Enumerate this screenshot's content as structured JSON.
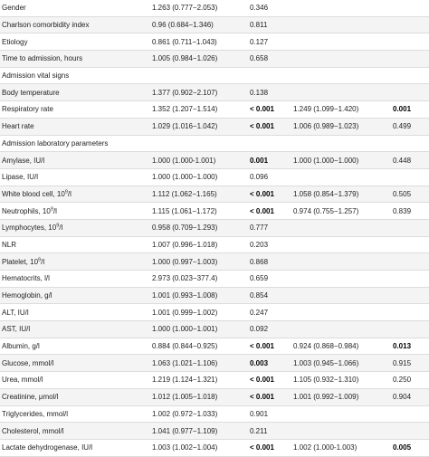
{
  "rows": [
    {
      "label": "Gender",
      "uni_or": "1.263 (0.777−2.053)",
      "uni_p": "0.346",
      "uni_p_bold": false,
      "multi_or": "",
      "multi_p": "",
      "multi_p_bold": false,
      "section": false
    },
    {
      "label": "Charlson comorbidity index",
      "uni_or": "0.96 (0.684−1.346)",
      "uni_p": "0.811",
      "uni_p_bold": false,
      "multi_or": "",
      "multi_p": "",
      "multi_p_bold": false,
      "section": false
    },
    {
      "label": "Etiology",
      "uni_or": "0.861 (0.711−1.043)",
      "uni_p": "0.127",
      "uni_p_bold": false,
      "multi_or": "",
      "multi_p": "",
      "multi_p_bold": false,
      "section": false
    },
    {
      "label": "Time to admission, hours",
      "uni_or": "1.005 (0.984−1.026)",
      "uni_p": "0.658",
      "uni_p_bold": false,
      "multi_or": "",
      "multi_p": "",
      "multi_p_bold": false,
      "section": false
    },
    {
      "label": "Admission vital signs",
      "uni_or": "",
      "uni_p": "",
      "uni_p_bold": false,
      "multi_or": "",
      "multi_p": "",
      "multi_p_bold": false,
      "section": true
    },
    {
      "label": "Body temperature",
      "uni_or": "1.377 (0.902−2.107)",
      "uni_p": "0.138",
      "uni_p_bold": false,
      "multi_or": "",
      "multi_p": "",
      "multi_p_bold": false,
      "section": false
    },
    {
      "label": "Respiratory rate",
      "uni_or": "1.352 (1.207−1.514)",
      "uni_p": "< 0.001",
      "uni_p_bold": true,
      "multi_or": "1.249 (1.099−1.420)",
      "multi_p": "0.001",
      "multi_p_bold": true,
      "section": false
    },
    {
      "label": "Heart rate",
      "uni_or": "1.029 (1.016−1.042)",
      "uni_p": "< 0.001",
      "uni_p_bold": true,
      "multi_or": "1.006 (0.989−1.023)",
      "multi_p": "0.499",
      "multi_p_bold": false,
      "section": false
    },
    {
      "label": "Admission laboratory parameters",
      "uni_or": "",
      "uni_p": "",
      "uni_p_bold": false,
      "multi_or": "",
      "multi_p": "",
      "multi_p_bold": false,
      "section": true
    },
    {
      "label": "Amylase, IU/l",
      "uni_or": "1.000 (1.000-1.001)",
      "uni_p": "0.001",
      "uni_p_bold": true,
      "multi_or": "1.000 (1.000−1.000)",
      "multi_p": "0.448",
      "multi_p_bold": false,
      "section": false
    },
    {
      "label": "Lipase, IU/l",
      "uni_or": "1.000 (1.000−1.000)",
      "uni_p": "0.096",
      "uni_p_bold": false,
      "multi_or": "",
      "multi_p": "",
      "multi_p_bold": false,
      "section": false
    },
    {
      "label": "White blood cell, 10",
      "label_sup": "9",
      "label_suffix": "/l",
      "uni_or": "1.112 (1.062−1.165)",
      "uni_p": "< 0.001",
      "uni_p_bold": true,
      "multi_or": "1.058 (0.854−1.379)",
      "multi_p": "0.505",
      "multi_p_bold": false,
      "section": false
    },
    {
      "label": "Neutrophils, 10",
      "label_sup": "9",
      "label_suffix": "/l",
      "uni_or": "1.115 (1.061−1.172)",
      "uni_p": "< 0.001",
      "uni_p_bold": true,
      "multi_or": "0.974 (0.755−1.257)",
      "multi_p": "0.839",
      "multi_p_bold": false,
      "section": false
    },
    {
      "label": "Lymphocytes, 10",
      "label_sup": "9",
      "label_suffix": "/l",
      "uni_or": "0.958 (0.709−1.293)",
      "uni_p": "0.777",
      "uni_p_bold": false,
      "multi_or": "",
      "multi_p": "",
      "multi_p_bold": false,
      "section": false
    },
    {
      "label": "NLR",
      "uni_or": "1.007 (0.996−1.018)",
      "uni_p": "0.203",
      "uni_p_bold": false,
      "multi_or": "",
      "multi_p": "",
      "multi_p_bold": false,
      "section": false
    },
    {
      "label": "Platelet, 10",
      "label_sup": "9",
      "label_suffix": "/l",
      "uni_or": "1.000 (0.997−1.003)",
      "uni_p": "0.868",
      "uni_p_bold": false,
      "multi_or": "",
      "multi_p": "",
      "multi_p_bold": false,
      "section": false
    },
    {
      "label": "Hematocrits, l/l",
      "uni_or": "2.973 (0.023−377.4)",
      "uni_p": "0.659",
      "uni_p_bold": false,
      "multi_or": "",
      "multi_p": "",
      "multi_p_bold": false,
      "section": false
    },
    {
      "label": "Hemoglobin, g/l",
      "uni_or": "1.001 (0.993−1.008)",
      "uni_p": "0.854",
      "uni_p_bold": false,
      "multi_or": "",
      "multi_p": "",
      "multi_p_bold": false,
      "section": false
    },
    {
      "label": "ALT, IU/l",
      "uni_or": "1.001 (0.999−1.002)",
      "uni_p": "0.247",
      "uni_p_bold": false,
      "multi_or": "",
      "multi_p": "",
      "multi_p_bold": false,
      "section": false
    },
    {
      "label": "AST, IU/l",
      "uni_or": "1.000 (1.000−1.001)",
      "uni_p": "0.092",
      "uni_p_bold": false,
      "multi_or": "",
      "multi_p": "",
      "multi_p_bold": false,
      "section": false
    },
    {
      "label": "Albumin, g/l",
      "uni_or": "0.884 (0.844−0.925)",
      "uni_p": "< 0.001",
      "uni_p_bold": true,
      "multi_or": "0.924 (0.868−0.984)",
      "multi_p": "0.013",
      "multi_p_bold": true,
      "section": false
    },
    {
      "label": "Glucose, mmol/l",
      "uni_or": "1.063 (1.021−1.106)",
      "uni_p": "0.003",
      "uni_p_bold": true,
      "multi_or": "1.003 (0.945−1.066)",
      "multi_p": "0.915",
      "multi_p_bold": false,
      "section": false
    },
    {
      "label": "Urea, mmol/l",
      "uni_or": "1.219 (1.124−1.321)",
      "uni_p": "< 0.001",
      "uni_p_bold": true,
      "multi_or": "1.105 (0.932−1.310)",
      "multi_p": "0.250",
      "multi_p_bold": false,
      "section": false
    },
    {
      "label": "Creatinine, μmol/l",
      "uni_or": "1.012 (1.005−1.018)",
      "uni_p": "< 0.001",
      "uni_p_bold": true,
      "multi_or": "1.001 (0.992−1.009)",
      "multi_p": "0.904",
      "multi_p_bold": false,
      "section": false
    },
    {
      "label": "Triglycerides, mmol/l",
      "uni_or": "1.002 (0.972−1.033)",
      "uni_p": "0.901",
      "uni_p_bold": false,
      "multi_or": "",
      "multi_p": "",
      "multi_p_bold": false,
      "section": false
    },
    {
      "label": "Cholesterol, mmol/l",
      "uni_or": "1.041 (0.977−1.109)",
      "uni_p": "0.211",
      "uni_p_bold": false,
      "multi_or": "",
      "multi_p": "",
      "multi_p_bold": false,
      "section": false
    },
    {
      "label": "Lactate dehydrogenase, IU/l",
      "uni_or": "1.003 (1.002−1.004)",
      "uni_p": "< 0.001",
      "uni_p_bold": true,
      "multi_or": "1.002 (1.000-1.003)",
      "multi_p": "0.005",
      "multi_p_bold": true,
      "section": false
    }
  ]
}
